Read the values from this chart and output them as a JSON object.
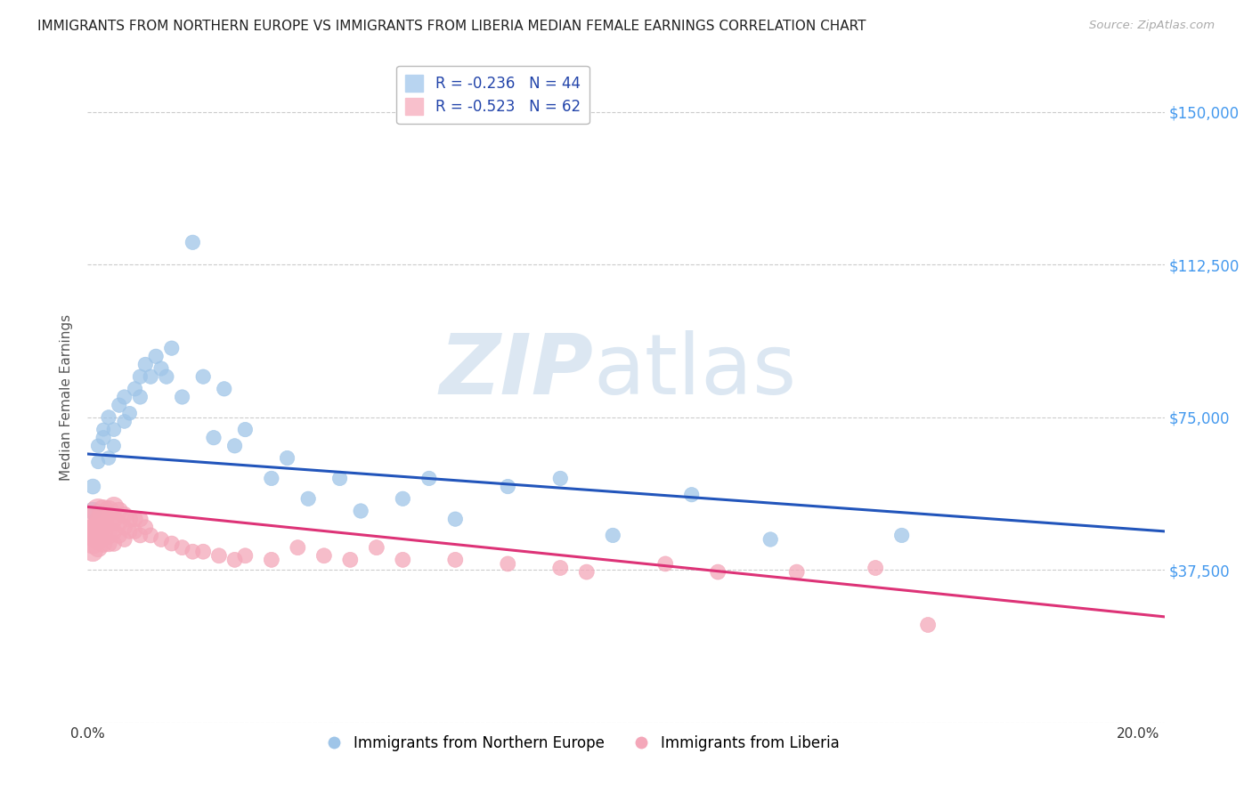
{
  "title": "IMMIGRANTS FROM NORTHERN EUROPE VS IMMIGRANTS FROM LIBERIA MEDIAN FEMALE EARNINGS CORRELATION CHART",
  "source": "Source: ZipAtlas.com",
  "ylabel": "Median Female Earnings",
  "xlim": [
    0.0,
    0.205
  ],
  "ylim": [
    0,
    160000
  ],
  "ytick_positions": [
    0,
    37500,
    75000,
    112500,
    150000
  ],
  "ytick_labels": [
    "",
    "$37,500",
    "$75,000",
    "$112,500",
    "$150,000"
  ],
  "series": [
    {
      "name": "Immigrants from Northern Europe",
      "R": -0.236,
      "N": 44,
      "color": "#9fc5e8",
      "edge_color": "#9fc5e8",
      "line_color": "#2255bb",
      "x": [
        0.001,
        0.001,
        0.002,
        0.002,
        0.003,
        0.003,
        0.004,
        0.004,
        0.005,
        0.005,
        0.006,
        0.007,
        0.007,
        0.008,
        0.009,
        0.01,
        0.01,
        0.011,
        0.012,
        0.013,
        0.014,
        0.015,
        0.016,
        0.018,
        0.02,
        0.022,
        0.024,
        0.026,
        0.028,
        0.03,
        0.035,
        0.038,
        0.042,
        0.048,
        0.052,
        0.06,
        0.065,
        0.07,
        0.08,
        0.09,
        0.1,
        0.115,
        0.13,
        0.155
      ],
      "y": [
        52000,
        58000,
        64000,
        68000,
        70000,
        72000,
        65000,
        75000,
        68000,
        72000,
        78000,
        74000,
        80000,
        76000,
        82000,
        80000,
        85000,
        88000,
        85000,
        90000,
        87000,
        85000,
        92000,
        80000,
        118000,
        85000,
        70000,
        82000,
        68000,
        72000,
        60000,
        65000,
        55000,
        60000,
        52000,
        55000,
        60000,
        50000,
        58000,
        60000,
        46000,
        56000,
        45000,
        46000
      ],
      "sizes": [
        200,
        150,
        120,
        130,
        140,
        120,
        130,
        140,
        120,
        130,
        140,
        130,
        140,
        130,
        140,
        140,
        140,
        140,
        140,
        140,
        140,
        140,
        140,
        140,
        140,
        140,
        140,
        140,
        140,
        140,
        140,
        140,
        140,
        140,
        140,
        140,
        140,
        140,
        140,
        140,
        140,
        140,
        140,
        140
      ],
      "trendline": {
        "x0": 0.0,
        "x1": 0.205,
        "y0": 66000,
        "y1": 47000
      }
    },
    {
      "name": "Immigrants from Liberia",
      "R": -0.523,
      "N": 62,
      "color": "#f4a7b9",
      "edge_color": "#f4a7b9",
      "line_color": "#dd3377",
      "x": [
        0.001,
        0.001,
        0.001,
        0.001,
        0.001,
        0.001,
        0.002,
        0.002,
        0.002,
        0.002,
        0.002,
        0.002,
        0.003,
        0.003,
        0.003,
        0.003,
        0.003,
        0.004,
        0.004,
        0.004,
        0.004,
        0.005,
        0.005,
        0.005,
        0.005,
        0.006,
        0.006,
        0.006,
        0.007,
        0.007,
        0.007,
        0.008,
        0.008,
        0.009,
        0.009,
        0.01,
        0.01,
        0.011,
        0.012,
        0.014,
        0.016,
        0.018,
        0.02,
        0.022,
        0.025,
        0.028,
        0.03,
        0.035,
        0.04,
        0.045,
        0.05,
        0.055,
        0.06,
        0.07,
        0.08,
        0.09,
        0.095,
        0.11,
        0.12,
        0.135,
        0.15,
        0.16
      ],
      "y": [
        50000,
        47000,
        46000,
        44000,
        42000,
        48000,
        52000,
        48000,
        45000,
        43000,
        47000,
        50000,
        52000,
        49000,
        46000,
        44000,
        48000,
        52000,
        49000,
        46000,
        44000,
        53000,
        50000,
        47000,
        44000,
        52000,
        49000,
        46000,
        51000,
        48000,
        45000,
        50000,
        47000,
        50000,
        47000,
        50000,
        46000,
        48000,
        46000,
        45000,
        44000,
        43000,
        42000,
        42000,
        41000,
        40000,
        41000,
        40000,
        43000,
        41000,
        40000,
        43000,
        40000,
        40000,
        39000,
        38000,
        37000,
        39000,
        37000,
        37000,
        38000,
        24000
      ],
      "sizes": [
        450,
        380,
        320,
        280,
        250,
        200,
        380,
        320,
        280,
        230,
        200,
        180,
        320,
        280,
        230,
        200,
        180,
        280,
        230,
        200,
        180,
        250,
        200,
        180,
        160,
        200,
        180,
        160,
        180,
        160,
        150,
        170,
        150,
        160,
        150,
        160,
        150,
        150,
        150,
        150,
        150,
        150,
        150,
        150,
        150,
        150,
        150,
        150,
        150,
        150,
        150,
        150,
        150,
        150,
        150,
        150,
        150,
        150,
        150,
        150,
        150,
        150
      ],
      "trendline": {
        "x0": 0.0,
        "x1": 0.205,
        "y0": 53000,
        "y1": 26000
      }
    }
  ],
  "legend_title_blue": "R = -0.236   N = 44",
  "legend_title_pink": "R = -0.523   N = 62",
  "watermark_zip": "ZIP",
  "watermark_atlas": "atlas",
  "background_color": "#ffffff",
  "grid_color": "#cccccc",
  "title_fontsize": 11,
  "axis_label_fontsize": 11,
  "tick_fontsize": 11,
  "ytick_color": "#4499ee",
  "source_color": "#aaaaaa"
}
